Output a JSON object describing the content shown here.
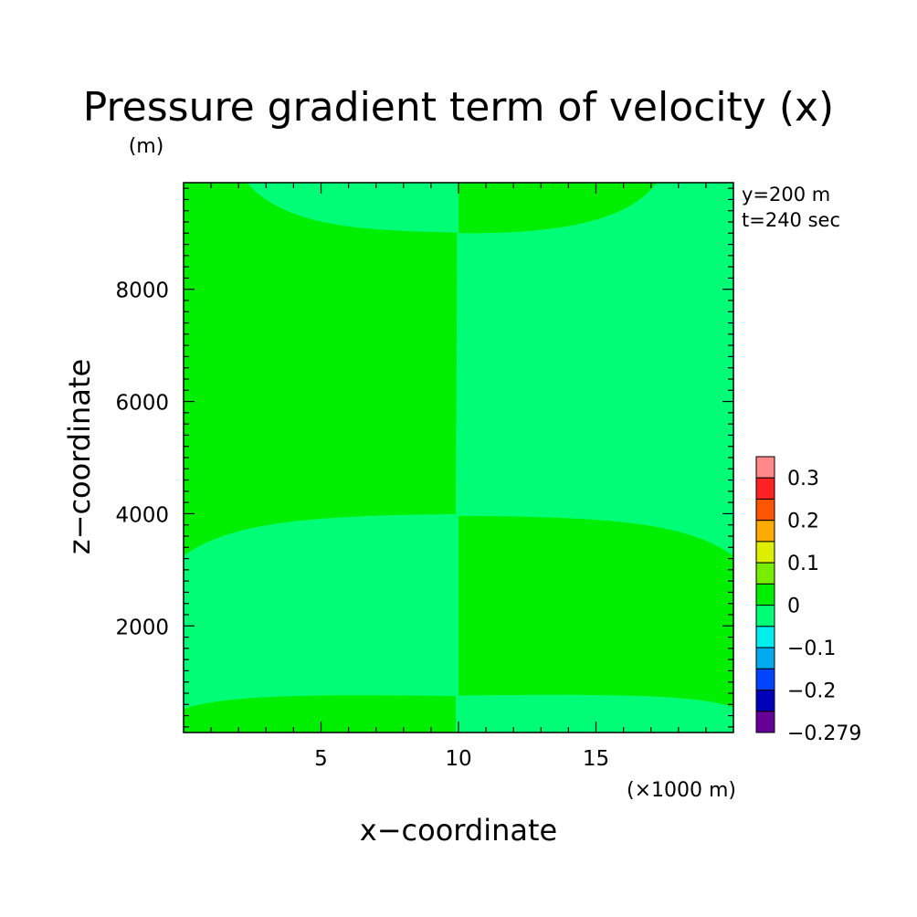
{
  "chart_data": {
    "type": "heatmap",
    "title": "Pressure gradient term of velocity (x)",
    "y_unit": "(m)",
    "xlabel": "x−coordinate",
    "ylabel": "z−coordinate",
    "x_unit": "(×1000 m)",
    "annotations": [
      "y=200 m",
      "t=240 sec"
    ],
    "xlim": [
      0,
      20
    ],
    "ylim": [
      100,
      9900
    ],
    "x_ticks": [
      5,
      10,
      15
    ],
    "y_ticks": [
      2000,
      4000,
      6000,
      8000
    ],
    "field_description": "antisymmetric about x=10; positive (0 to 0.05) and negative (-0.05 to 0) bands",
    "regions": [
      {
        "label": "0 to 0.05",
        "color": "#00ee00",
        "x": [
          0,
          10
        ],
        "z_range": [
          4000,
          9000
        ]
      },
      {
        "label": "0 to 0.05",
        "color": "#00ee00",
        "x": [
          10,
          20
        ],
        "z_range": [
          750,
          3950
        ]
      },
      {
        "label": "0 to 0.05",
        "color": "#00ee00",
        "x": [
          0,
          10
        ],
        "z_range": [
          100,
          750
        ]
      },
      {
        "label": "0 to 0.05",
        "color": "#00ee00",
        "x": [
          10,
          20
        ],
        "z_range": [
          9000,
          9900
        ]
      },
      {
        "label": "-0.05 to 0",
        "color": "#00ff77",
        "note": "remaining area"
      }
    ],
    "colorbar": {
      "levels": [
        {
          "range": "0.3 to max",
          "color": "#ff8888"
        },
        {
          "range": "0.25 to 0.3",
          "color": "#ff2222"
        },
        {
          "range": "0.2 to 0.25",
          "color": "#ff5500"
        },
        {
          "range": "0.15 to 0.2",
          "color": "#ffaa00"
        },
        {
          "range": "0.1 to 0.15",
          "color": "#ddee00"
        },
        {
          "range": "0.05 to 0.1",
          "color": "#77ee00"
        },
        {
          "range": "0 to 0.05",
          "color": "#00ee00"
        },
        {
          "range": "-0.05 to 0",
          "color": "#00ff77"
        },
        {
          "range": "-0.1 to -0.05",
          "color": "#00eeee"
        },
        {
          "range": "-0.15 to -0.1",
          "color": "#00aaee"
        },
        {
          "range": "-0.2 to -0.15",
          "color": "#0044ff"
        },
        {
          "range": "-0.25 to -0.2",
          "color": "#0000bb"
        },
        {
          "range": "min to -0.25",
          "color": "#660099"
        }
      ],
      "tick_labels": [
        "0.3",
        "0.2",
        "0.1",
        "0",
        "−0.1",
        "−0.2",
        "−0.279"
      ]
    }
  }
}
